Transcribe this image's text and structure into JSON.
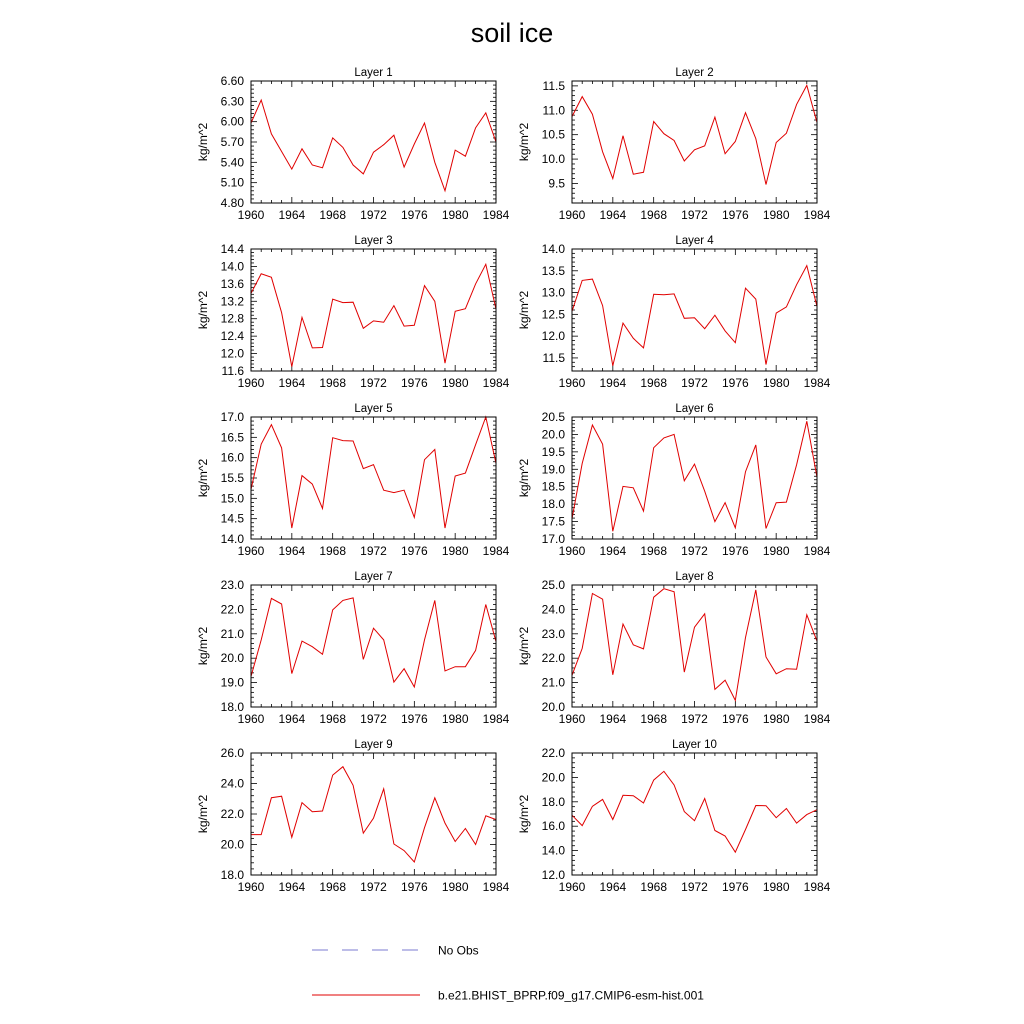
{
  "figure": {
    "title": "soil ice",
    "legend": [
      {
        "label": "No Obs",
        "color": "#7b7bd0",
        "dash": "dashed"
      },
      {
        "label": "b.e21.BHIST_BPRP.f09_g17.CMIP6-esm-hist.001",
        "color": "#e00000",
        "dash": "solid"
      }
    ]
  },
  "chart_data": [
    {
      "type": "line",
      "title": "Layer 1",
      "ylabel": "kg/m^2",
      "xlim": [
        1960,
        1984
      ],
      "ylim": [
        4.8,
        6.6
      ],
      "xticks": [
        "1960",
        "1964",
        "1968",
        "1972",
        "1976",
        "1980",
        "1984"
      ],
      "yticks": [
        "4.80",
        "5.10",
        "5.40",
        "5.70",
        "6.00",
        "6.30",
        "6.60"
      ],
      "ytick_values": [
        4.8,
        5.1,
        5.4,
        5.7,
        6.0,
        6.3,
        6.6
      ],
      "x": [
        1960,
        1961,
        1962,
        1963,
        1964,
        1965,
        1966,
        1967,
        1968,
        1969,
        1970,
        1971,
        1972,
        1973,
        1974,
        1975,
        1976,
        1977,
        1978,
        1979,
        1980,
        1981,
        1982,
        1983,
        1984
      ],
      "series": [
        {
          "values": [
            5.98,
            6.32,
            5.82,
            5.56,
            5.3,
            5.6,
            5.36,
            5.32,
            5.76,
            5.62,
            5.36,
            5.23,
            5.55,
            5.66,
            5.8,
            5.33,
            5.67,
            5.98,
            5.4,
            4.98,
            5.58,
            5.49,
            5.91,
            6.13,
            5.7
          ],
          "color": "#e00000"
        }
      ]
    },
    {
      "type": "line",
      "title": "Layer 2",
      "ylabel": "kg/m^2",
      "xlim": [
        1960,
        1984
      ],
      "ylim": [
        9.1,
        11.6
      ],
      "xticks": [
        "1960",
        "1964",
        "1968",
        "1972",
        "1976",
        "1980",
        "1984"
      ],
      "yticks": [
        "9.5",
        "10.0",
        "10.5",
        "11.0",
        "11.5"
      ],
      "ytick_values": [
        9.5,
        10.0,
        10.5,
        11.0,
        11.5
      ],
      "x": [
        1960,
        1961,
        1962,
        1963,
        1964,
        1965,
        1966,
        1967,
        1968,
        1969,
        1970,
        1971,
        1972,
        1973,
        1974,
        1975,
        1976,
        1977,
        1978,
        1979,
        1980,
        1981,
        1982,
        1983,
        1984
      ],
      "series": [
        {
          "values": [
            10.87,
            11.28,
            10.92,
            10.15,
            9.6,
            10.48,
            9.69,
            9.73,
            10.77,
            10.52,
            10.38,
            9.96,
            10.19,
            10.27,
            10.86,
            10.11,
            10.36,
            10.95,
            10.42,
            9.48,
            10.34,
            10.53,
            11.12,
            11.51,
            10.75
          ],
          "color": "#e00000"
        }
      ]
    },
    {
      "type": "line",
      "title": "Layer 3",
      "ylabel": "kg/m^2",
      "xlim": [
        1960,
        1984
      ],
      "ylim": [
        11.6,
        14.4
      ],
      "xticks": [
        "1960",
        "1964",
        "1968",
        "1972",
        "1976",
        "1980",
        "1984"
      ],
      "yticks": [
        "11.6",
        "12.0",
        "12.4",
        "12.8",
        "13.2",
        "13.6",
        "14.0",
        "14.4"
      ],
      "ytick_values": [
        11.6,
        12.0,
        12.4,
        12.8,
        13.2,
        13.6,
        14.0,
        14.4
      ],
      "x": [
        1960,
        1961,
        1962,
        1963,
        1964,
        1965,
        1966,
        1967,
        1968,
        1969,
        1970,
        1971,
        1972,
        1973,
        1974,
        1975,
        1976,
        1977,
        1978,
        1979,
        1980,
        1981,
        1982,
        1983,
        1984
      ],
      "series": [
        {
          "values": [
            13.38,
            13.83,
            13.75,
            12.94,
            11.7,
            12.83,
            12.13,
            12.14,
            13.25,
            13.17,
            13.18,
            12.58,
            12.75,
            12.72,
            13.1,
            12.63,
            12.65,
            13.56,
            13.2,
            11.78,
            12.97,
            13.03,
            13.6,
            14.05,
            13.02
          ],
          "color": "#e00000"
        }
      ]
    },
    {
      "type": "line",
      "title": "Layer 4",
      "ylabel": "kg/m^2",
      "xlim": [
        1960,
        1984
      ],
      "ylim": [
        11.2,
        14.0
      ],
      "xticks": [
        "1960",
        "1964",
        "1968",
        "1972",
        "1976",
        "1980",
        "1984"
      ],
      "yticks": [
        "11.5",
        "12.0",
        "12.5",
        "13.0",
        "13.5",
        "14.0"
      ],
      "ytick_values": [
        11.5,
        12.0,
        12.5,
        13.0,
        13.5,
        14.0
      ],
      "x": [
        1960,
        1961,
        1962,
        1963,
        1964,
        1965,
        1966,
        1967,
        1968,
        1969,
        1970,
        1971,
        1972,
        1973,
        1974,
        1975,
        1976,
        1977,
        1978,
        1979,
        1980,
        1981,
        1982,
        1983,
        1984
      ],
      "series": [
        {
          "values": [
            12.57,
            13.28,
            13.31,
            12.7,
            11.32,
            12.3,
            11.95,
            11.73,
            12.96,
            12.95,
            12.97,
            12.41,
            12.42,
            12.17,
            12.48,
            12.12,
            11.85,
            13.1,
            12.85,
            11.35,
            12.53,
            12.67,
            13.18,
            13.62,
            12.68
          ],
          "color": "#e00000"
        }
      ]
    },
    {
      "type": "line",
      "title": "Layer 5",
      "ylabel": "kg/m^2",
      "xlim": [
        1960,
        1984
      ],
      "ylim": [
        14.0,
        17.0
      ],
      "xticks": [
        "1960",
        "1964",
        "1968",
        "1972",
        "1976",
        "1980",
        "1984"
      ],
      "yticks": [
        "14.0",
        "14.5",
        "15.0",
        "15.5",
        "16.0",
        "16.5",
        "17.0"
      ],
      "ytick_values": [
        14.0,
        14.5,
        15.0,
        15.5,
        16.0,
        16.5,
        17.0
      ],
      "x": [
        1960,
        1961,
        1962,
        1963,
        1964,
        1965,
        1966,
        1967,
        1968,
        1969,
        1970,
        1971,
        1972,
        1973,
        1974,
        1975,
        1976,
        1977,
        1978,
        1979,
        1980,
        1981,
        1982,
        1983,
        1984
      ],
      "series": [
        {
          "values": [
            15.22,
            16.33,
            16.81,
            16.24,
            14.27,
            15.56,
            15.35,
            14.75,
            16.49,
            16.42,
            16.41,
            15.73,
            15.83,
            15.2,
            15.14,
            15.2,
            14.53,
            15.95,
            16.2,
            14.27,
            15.55,
            15.62,
            16.32,
            17.0,
            15.86
          ],
          "color": "#e00000"
        }
      ]
    },
    {
      "type": "line",
      "title": "Layer 6",
      "ylabel": "kg/m^2",
      "xlim": [
        1960,
        1984
      ],
      "ylim": [
        17.0,
        20.5
      ],
      "xticks": [
        "1960",
        "1964",
        "1968",
        "1972",
        "1976",
        "1980",
        "1984"
      ],
      "yticks": [
        "17.0",
        "17.5",
        "18.0",
        "18.5",
        "19.0",
        "19.5",
        "20.0",
        "20.5"
      ],
      "ytick_values": [
        17.0,
        17.5,
        18.0,
        18.5,
        19.0,
        19.5,
        20.0,
        20.5
      ],
      "x": [
        1960,
        1961,
        1962,
        1963,
        1964,
        1965,
        1966,
        1967,
        1968,
        1969,
        1970,
        1971,
        1972,
        1973,
        1974,
        1975,
        1976,
        1977,
        1978,
        1979,
        1980,
        1981,
        1982,
        1983,
        1984
      ],
      "series": [
        {
          "values": [
            17.58,
            19.17,
            20.27,
            19.72,
            17.22,
            18.51,
            18.47,
            17.8,
            19.62,
            19.9,
            20.0,
            18.67,
            19.15,
            18.37,
            17.5,
            18.04,
            17.32,
            18.93,
            19.7,
            17.3,
            18.04,
            18.06,
            19.13,
            20.38,
            18.77
          ],
          "color": "#e00000"
        }
      ]
    },
    {
      "type": "line",
      "title": "Layer 7",
      "ylabel": "kg/m^2",
      "xlim": [
        1960,
        1984
      ],
      "ylim": [
        18.0,
        23.0
      ],
      "xticks": [
        "1960",
        "1964",
        "1968",
        "1972",
        "1976",
        "1980",
        "1984"
      ],
      "yticks": [
        "18.0",
        "19.0",
        "20.0",
        "21.0",
        "22.0",
        "23.0"
      ],
      "ytick_values": [
        18.0,
        19.0,
        20.0,
        21.0,
        22.0,
        23.0
      ],
      "x": [
        1960,
        1961,
        1962,
        1963,
        1964,
        1965,
        1966,
        1967,
        1968,
        1969,
        1970,
        1971,
        1972,
        1973,
        1974,
        1975,
        1976,
        1977,
        1978,
        1979,
        1980,
        1981,
        1982,
        1983,
        1984
      ],
      "series": [
        {
          "values": [
            19.25,
            20.75,
            22.45,
            22.22,
            19.37,
            20.7,
            20.47,
            20.16,
            21.98,
            22.37,
            22.47,
            19.95,
            21.23,
            20.75,
            19.02,
            19.57,
            18.82,
            20.75,
            22.37,
            19.48,
            19.65,
            19.65,
            20.32,
            22.2,
            20.68
          ],
          "color": "#e00000"
        }
      ]
    },
    {
      "type": "line",
      "title": "Layer 8",
      "ylabel": "kg/m^2",
      "xlim": [
        1960,
        1984
      ],
      "ylim": [
        20.0,
        25.0
      ],
      "xticks": [
        "1960",
        "1964",
        "1968",
        "1972",
        "1976",
        "1980",
        "1984"
      ],
      "yticks": [
        "20.0",
        "21.0",
        "22.0",
        "23.0",
        "24.0",
        "25.0"
      ],
      "ytick_values": [
        20.0,
        21.0,
        22.0,
        23.0,
        24.0,
        25.0
      ],
      "x": [
        1960,
        1961,
        1962,
        1963,
        1964,
        1965,
        1966,
        1967,
        1968,
        1969,
        1970,
        1971,
        1972,
        1973,
        1974,
        1975,
        1976,
        1977,
        1978,
        1979,
        1980,
        1981,
        1982,
        1983,
        1984
      ],
      "series": [
        {
          "values": [
            21.3,
            22.4,
            24.65,
            24.42,
            21.32,
            23.4,
            22.55,
            22.38,
            24.5,
            24.85,
            24.72,
            21.43,
            23.27,
            23.82,
            20.72,
            21.1,
            20.27,
            22.85,
            24.8,
            22.05,
            21.36,
            21.57,
            21.55,
            23.78,
            22.7
          ],
          "color": "#e00000"
        }
      ]
    },
    {
      "type": "line",
      "title": "Layer 9",
      "ylabel": "kg/m^2",
      "xlim": [
        1960,
        1984
      ],
      "ylim": [
        18.0,
        26.0
      ],
      "xticks": [
        "1960",
        "1964",
        "1968",
        "1972",
        "1976",
        "1980",
        "1984"
      ],
      "yticks": [
        "18.0",
        "20.0",
        "22.0",
        "24.0",
        "26.0"
      ],
      "ytick_values": [
        18.0,
        20.0,
        22.0,
        24.0,
        26.0
      ],
      "x": [
        1960,
        1961,
        1962,
        1963,
        1964,
        1965,
        1966,
        1967,
        1968,
        1969,
        1970,
        1971,
        1972,
        1973,
        1974,
        1975,
        1976,
        1977,
        1978,
        1979,
        1980,
        1981,
        1982,
        1983,
        1984
      ],
      "series": [
        {
          "values": [
            20.65,
            20.65,
            23.07,
            23.17,
            20.47,
            22.75,
            22.15,
            22.2,
            24.55,
            25.1,
            23.88,
            20.75,
            21.73,
            23.65,
            20.03,
            19.6,
            18.85,
            21.1,
            23.06,
            21.4,
            20.2,
            21.05,
            20.0,
            21.88,
            21.63
          ],
          "color": "#e00000"
        }
      ]
    },
    {
      "type": "line",
      "title": "Layer 10",
      "ylabel": "kg/m^2",
      "xlim": [
        1960,
        1984
      ],
      "ylim": [
        12.0,
        22.0
      ],
      "xticks": [
        "1960",
        "1964",
        "1968",
        "1972",
        "1976",
        "1980",
        "1984"
      ],
      "yticks": [
        "12.0",
        "14.0",
        "16.0",
        "18.0",
        "20.0",
        "22.0"
      ],
      "ytick_values": [
        12.0,
        14.0,
        16.0,
        18.0,
        20.0,
        22.0
      ],
      "x": [
        1960,
        1961,
        1962,
        1963,
        1964,
        1965,
        1966,
        1967,
        1968,
        1969,
        1970,
        1971,
        1972,
        1973,
        1974,
        1975,
        1976,
        1977,
        1978,
        1979,
        1980,
        1981,
        1982,
        1983,
        1984
      ],
      "series": [
        {
          "values": [
            16.9,
            16.05,
            17.63,
            18.2,
            16.55,
            18.53,
            18.5,
            17.9,
            19.78,
            20.5,
            19.38,
            17.2,
            16.45,
            18.27,
            15.65,
            15.2,
            13.87,
            15.73,
            17.7,
            17.68,
            16.7,
            17.45,
            16.25,
            16.95,
            17.35
          ],
          "color": "#e00000"
        }
      ]
    }
  ]
}
